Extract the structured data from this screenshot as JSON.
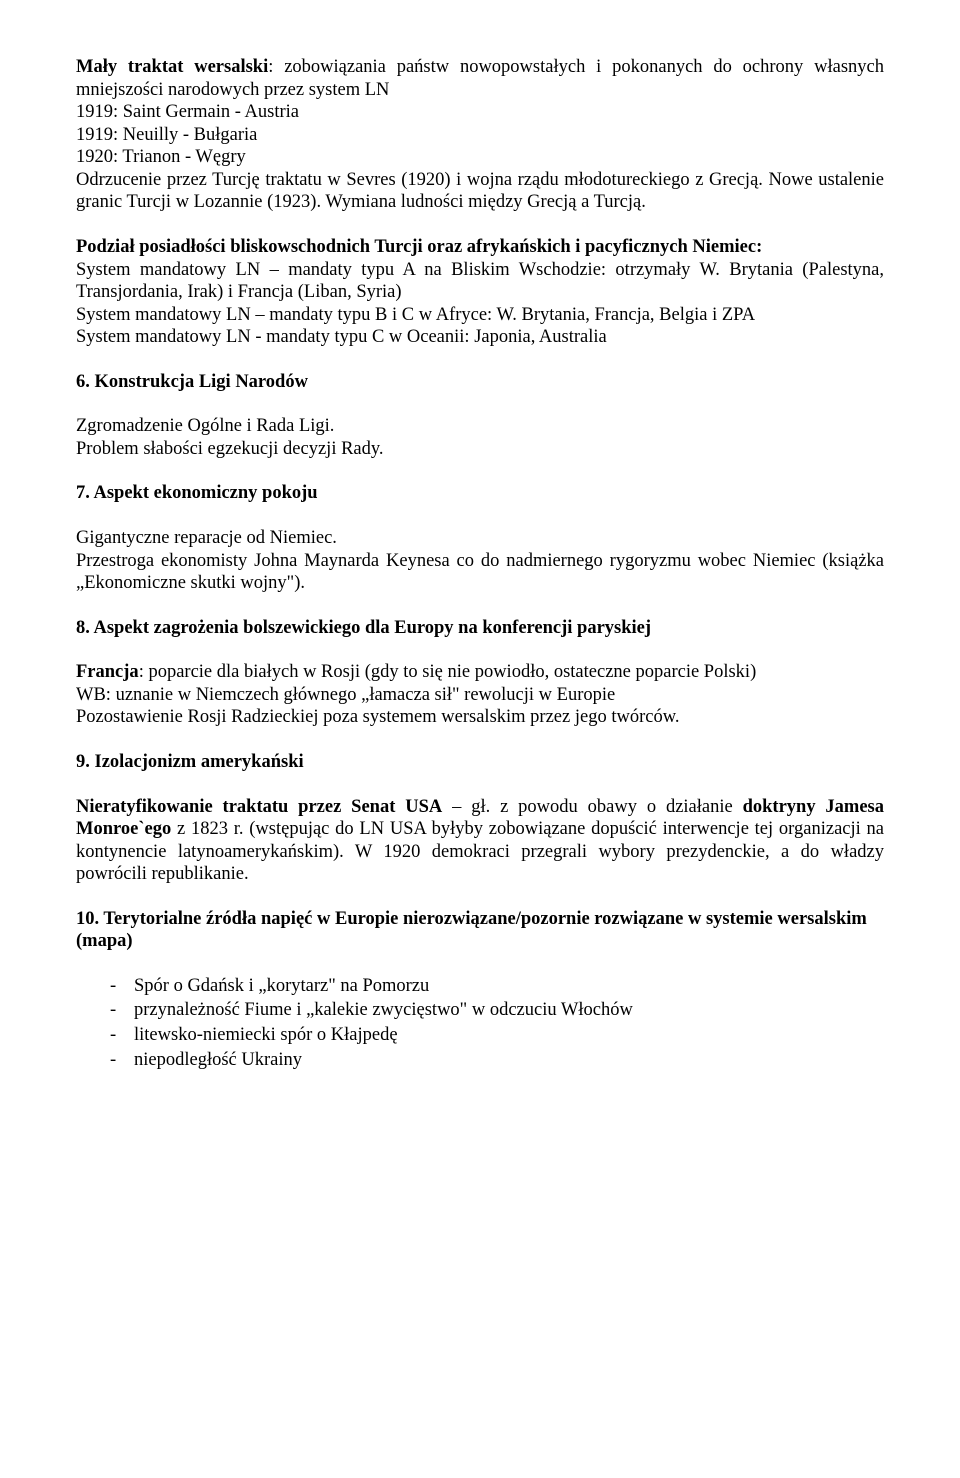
{
  "p1": {
    "lead_bold": "Mały traktat wersalski",
    "lead_rest": ": zobowiązania państw nowopowstałych i pokonanych do ochrony własnych mniejszości narodowych przez system LN",
    "line2": "1919: Saint Germain - Austria",
    "line3": "1919: Neuilly - Bułgaria",
    "line4": "1920: Trianon - Węgry",
    "line5": "Odrzucenie przez Turcję traktatu w Sevres (1920) i wojna rządu młodotureckiego z Grecją. Nowe ustalenie granic Turcji w Lozannie (1923). Wymiana ludności między Grecją a Turcją."
  },
  "p2": {
    "bold": "Podział posiadłości bliskowschodnich Turcji oraz afrykańskich i pacyficznych Niemiec:",
    "l1": "System mandatowy LN – mandaty typu A na Bliskim Wschodzie: otrzymały W. Brytania (Palestyna, Transjordania, Irak) i Francja (Liban, Syria)",
    "l2": "System mandatowy LN – mandaty typu B i C w Afryce: W. Brytania, Francja, Belgia i ZPA",
    "l3": "System mandatowy LN - mandaty typu C w Oceanii: Japonia, Australia"
  },
  "s6": {
    "title": "6.  Konstrukcja Ligi Narodów",
    "l1": "Zgromadzenie Ogólne i Rada Ligi.",
    "l2": "Problem słabości egzekucji decyzji Rady."
  },
  "s7": {
    "title": "7.  Aspekt ekonomiczny pokoju",
    "l1": "Gigantyczne reparacje od Niemiec.",
    "l2": "Przestroga ekonomisty Johna Maynarda Keynesa co do nadmiernego rygoryzmu wobec Niemiec (książka „Ekonomiczne skutki wojny\")."
  },
  "s8": {
    "title": "8.  Aspekt zagrożenia bolszewickiego dla Europy na konferencji paryskiej",
    "fr_label": "Francja",
    "fr_rest": ": poparcie dla białych w Rosji (gdy to się nie powiodło, ostateczne poparcie Polski)",
    "l2": "WB: uznanie w Niemczech głównego „łamacza sił\" rewolucji w Europie",
    "l3": "Pozostawienie Rosji Radzieckiej poza systemem wersalskim przez jego twórców."
  },
  "s9": {
    "title": "9.  Izolacjonizm amerykański",
    "bold": "Nieratyfikowanie traktatu przez Senat USA",
    "rest1": " – gł. z powodu obawy o działanie ",
    "bold2": "doktryny Jamesa Monroe`ego",
    "rest2": " z 1823 r. (wstępując do LN USA byłyby zobowiązane dopuścić interwencje tej organizacji na kontynencie latynoamerykańskim). W 1920 demokraci przegrali wybory prezydenckie, a do władzy powrócili republikanie."
  },
  "s10": {
    "title": "10. Terytorialne źródła napięć w Europie nierozwiązane/pozornie rozwiązane w systemie wersalskim (mapa)",
    "items": [
      "Spór o Gdańsk i „korytarz\" na Pomorzu",
      "przynależność Fiume i „kalekie zwycięstwo\" w odczuciu Włochów",
      "litewsko-niemiecki spór o Kłajpedę",
      "niepodległość Ukrainy"
    ]
  }
}
